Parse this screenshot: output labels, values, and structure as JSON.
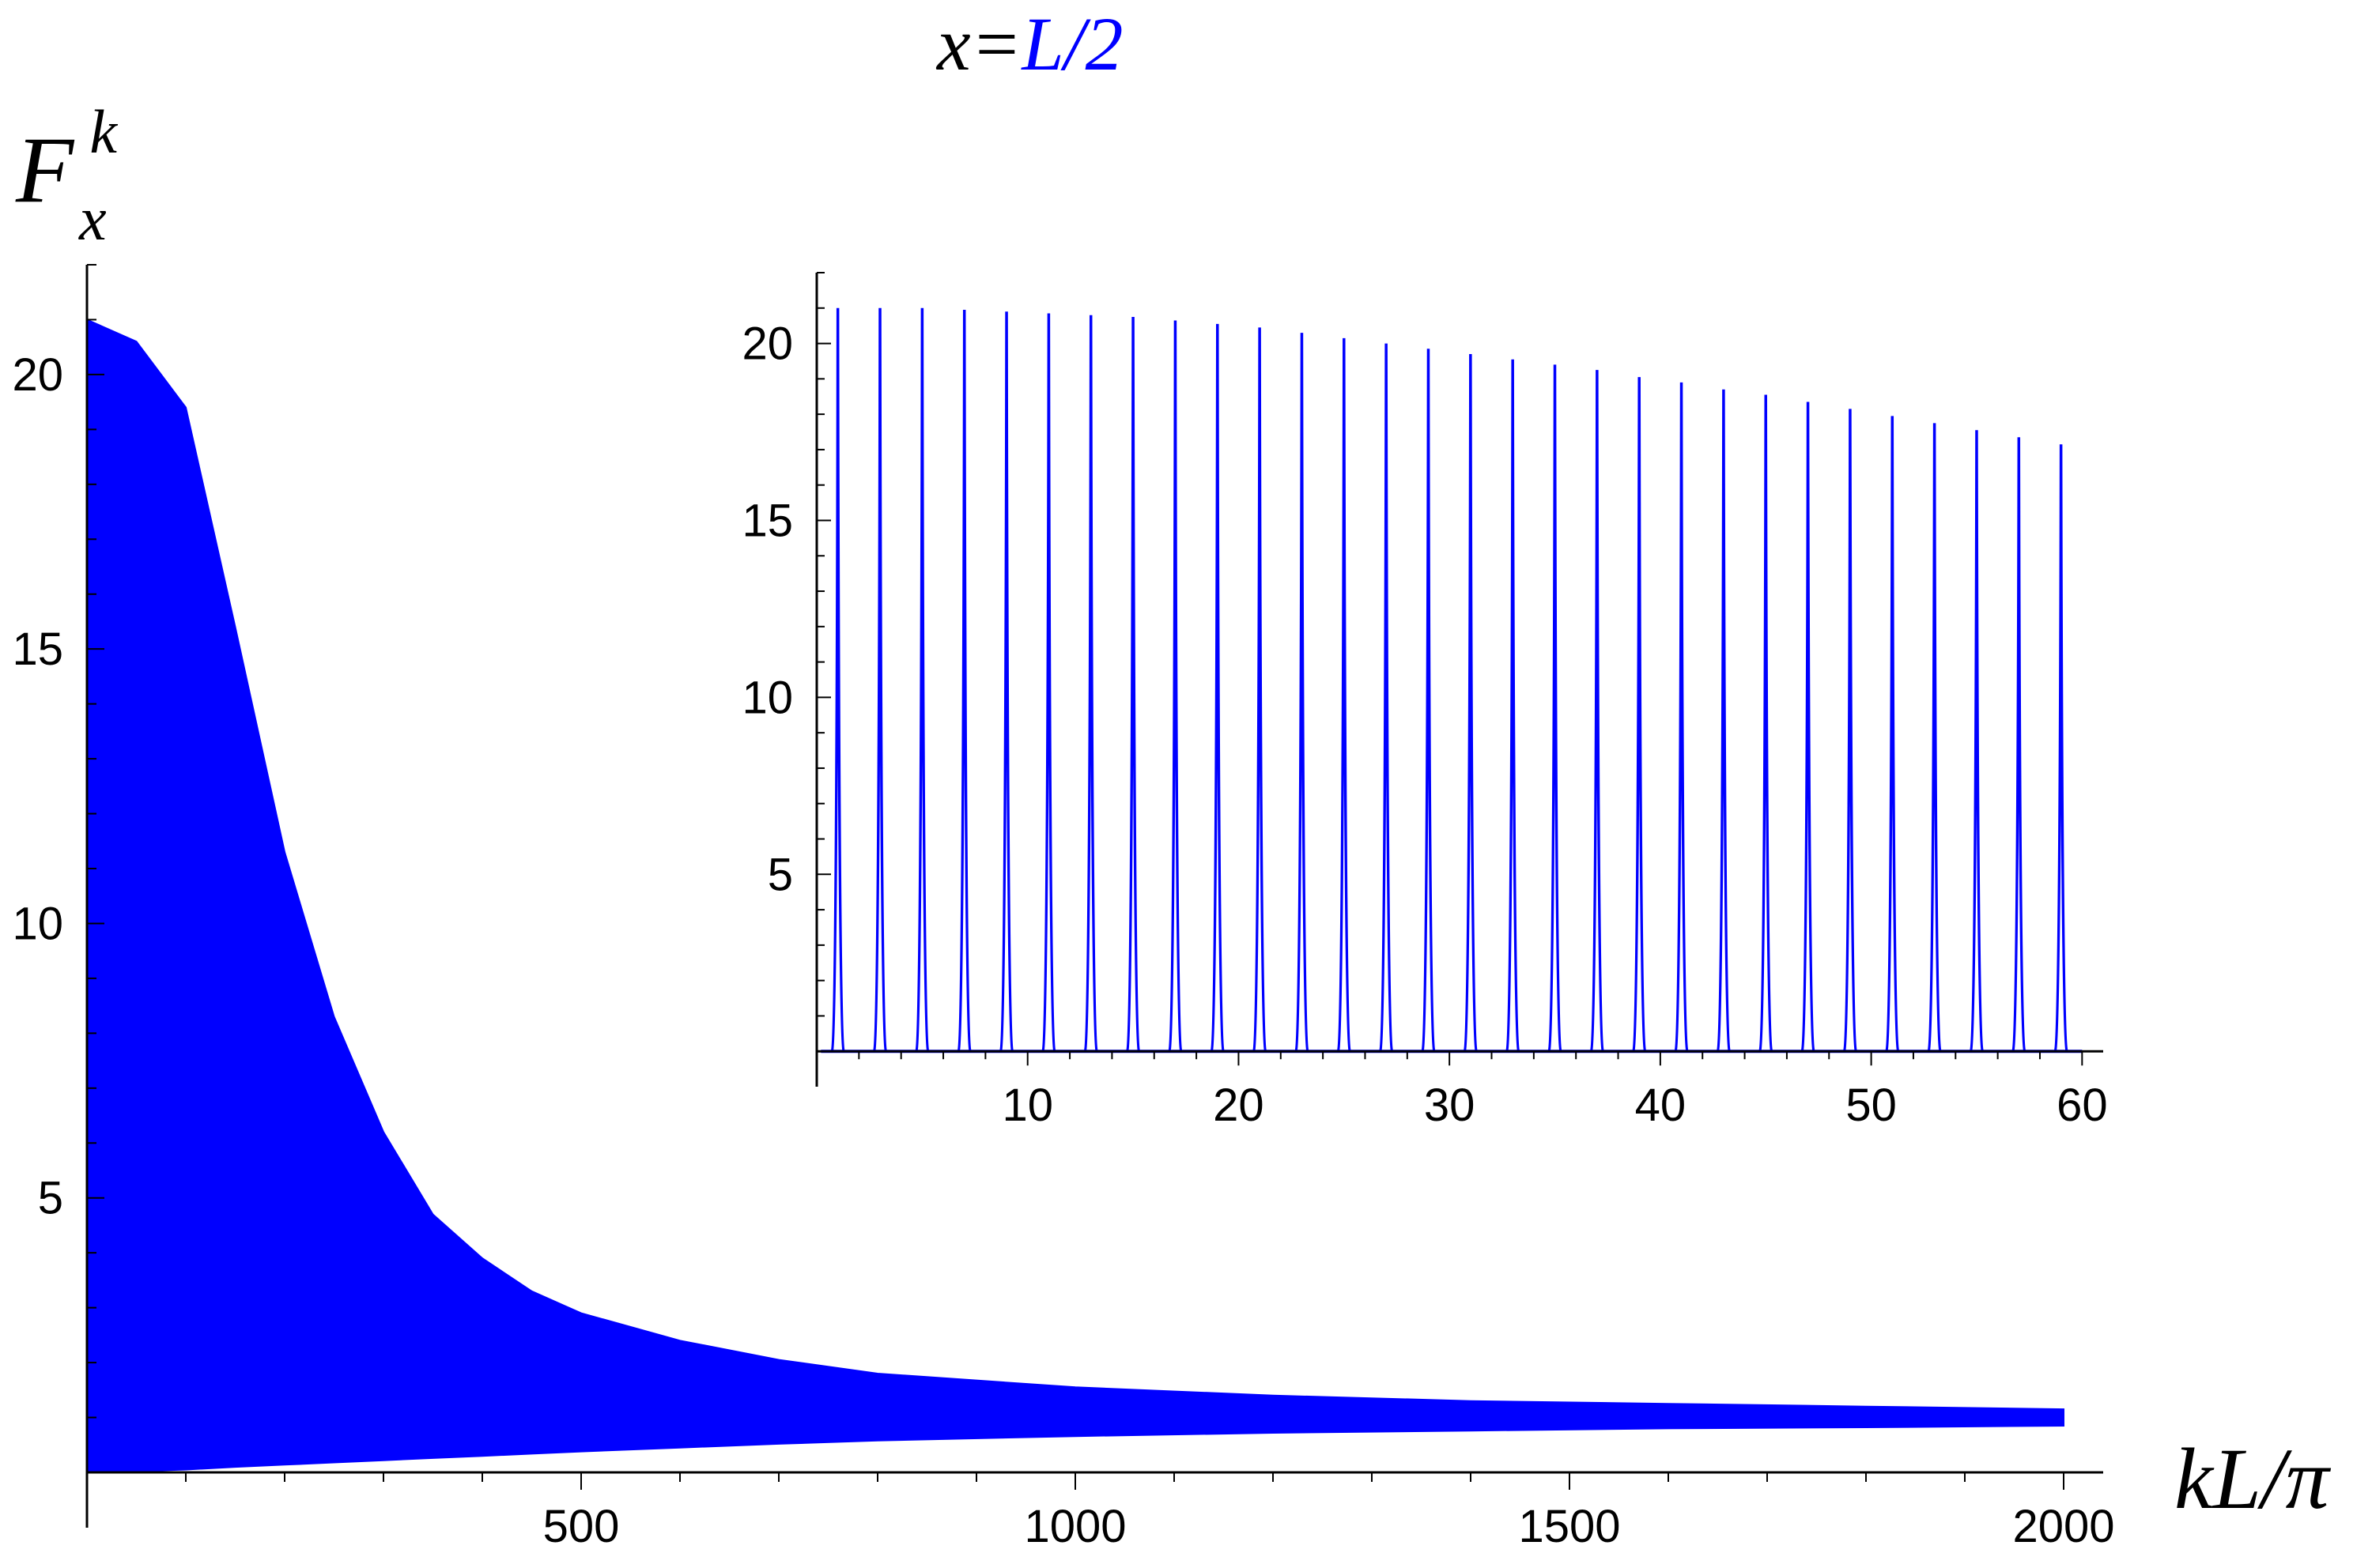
{
  "chart_data": [
    {
      "type": "area",
      "title_parts": [
        "x=",
        "L/2"
      ],
      "title_colors": [
        "#000000",
        "#0000ff"
      ],
      "ylabel_main": "F",
      "ylabel_sup": "k",
      "ylabel_sub": "x",
      "xlabel": "kL/π",
      "xlim": [
        0,
        2040
      ],
      "ylim": [
        0,
        22
      ],
      "xticks": [
        500,
        1000,
        1500,
        2000
      ],
      "yticks": [
        5,
        10,
        15,
        20
      ],
      "series_color": "#0000ff",
      "series": [
        {
          "kind": "envelope",
          "x": [
            0,
            50,
            100,
            150,
            200,
            250,
            300,
            350,
            400,
            450,
            500,
            600,
            700,
            800,
            1000,
            1200,
            1400,
            1600,
            1800,
            2000
          ],
          "upper": [
            21.0,
            20.6,
            19.4,
            15.4,
            11.3,
            8.3,
            6.2,
            4.7,
            3.9,
            3.3,
            2.9,
            2.4,
            2.05,
            1.8,
            1.55,
            1.4,
            1.3,
            1.25,
            1.2,
            1.15
          ],
          "lower": [
            0.0,
            0.02,
            0.05,
            0.1,
            0.14,
            0.18,
            0.22,
            0.26,
            0.3,
            0.34,
            0.38,
            0.45,
            0.52,
            0.58,
            0.66,
            0.72,
            0.76,
            0.8,
            0.82,
            0.85
          ]
        }
      ]
    },
    {
      "type": "line",
      "inset": true,
      "xlim": [
        0,
        61
      ],
      "ylim": [
        -1,
        22
      ],
      "xticks": [
        10,
        20,
        30,
        40,
        50,
        60
      ],
      "yticks": [
        5,
        10,
        15,
        20
      ],
      "series_color": "#0000ff",
      "series": [
        {
          "kind": "peaks",
          "x": [
            1,
            3,
            5,
            7,
            9,
            11,
            13,
            15,
            17,
            19,
            21,
            23,
            25,
            27,
            29,
            31,
            33,
            35,
            37,
            39,
            41,
            43,
            45,
            47,
            49,
            51,
            53,
            55,
            57,
            59
          ],
          "y": [
            21.0,
            21.0,
            21.0,
            20.95,
            20.9,
            20.85,
            20.8,
            20.75,
            20.65,
            20.55,
            20.45,
            20.3,
            20.15,
            20.0,
            19.85,
            19.7,
            19.55,
            19.4,
            19.25,
            19.05,
            18.9,
            18.7,
            18.55,
            18.35,
            18.15,
            17.95,
            17.75,
            17.55,
            17.35,
            17.15
          ]
        }
      ]
    }
  ]
}
